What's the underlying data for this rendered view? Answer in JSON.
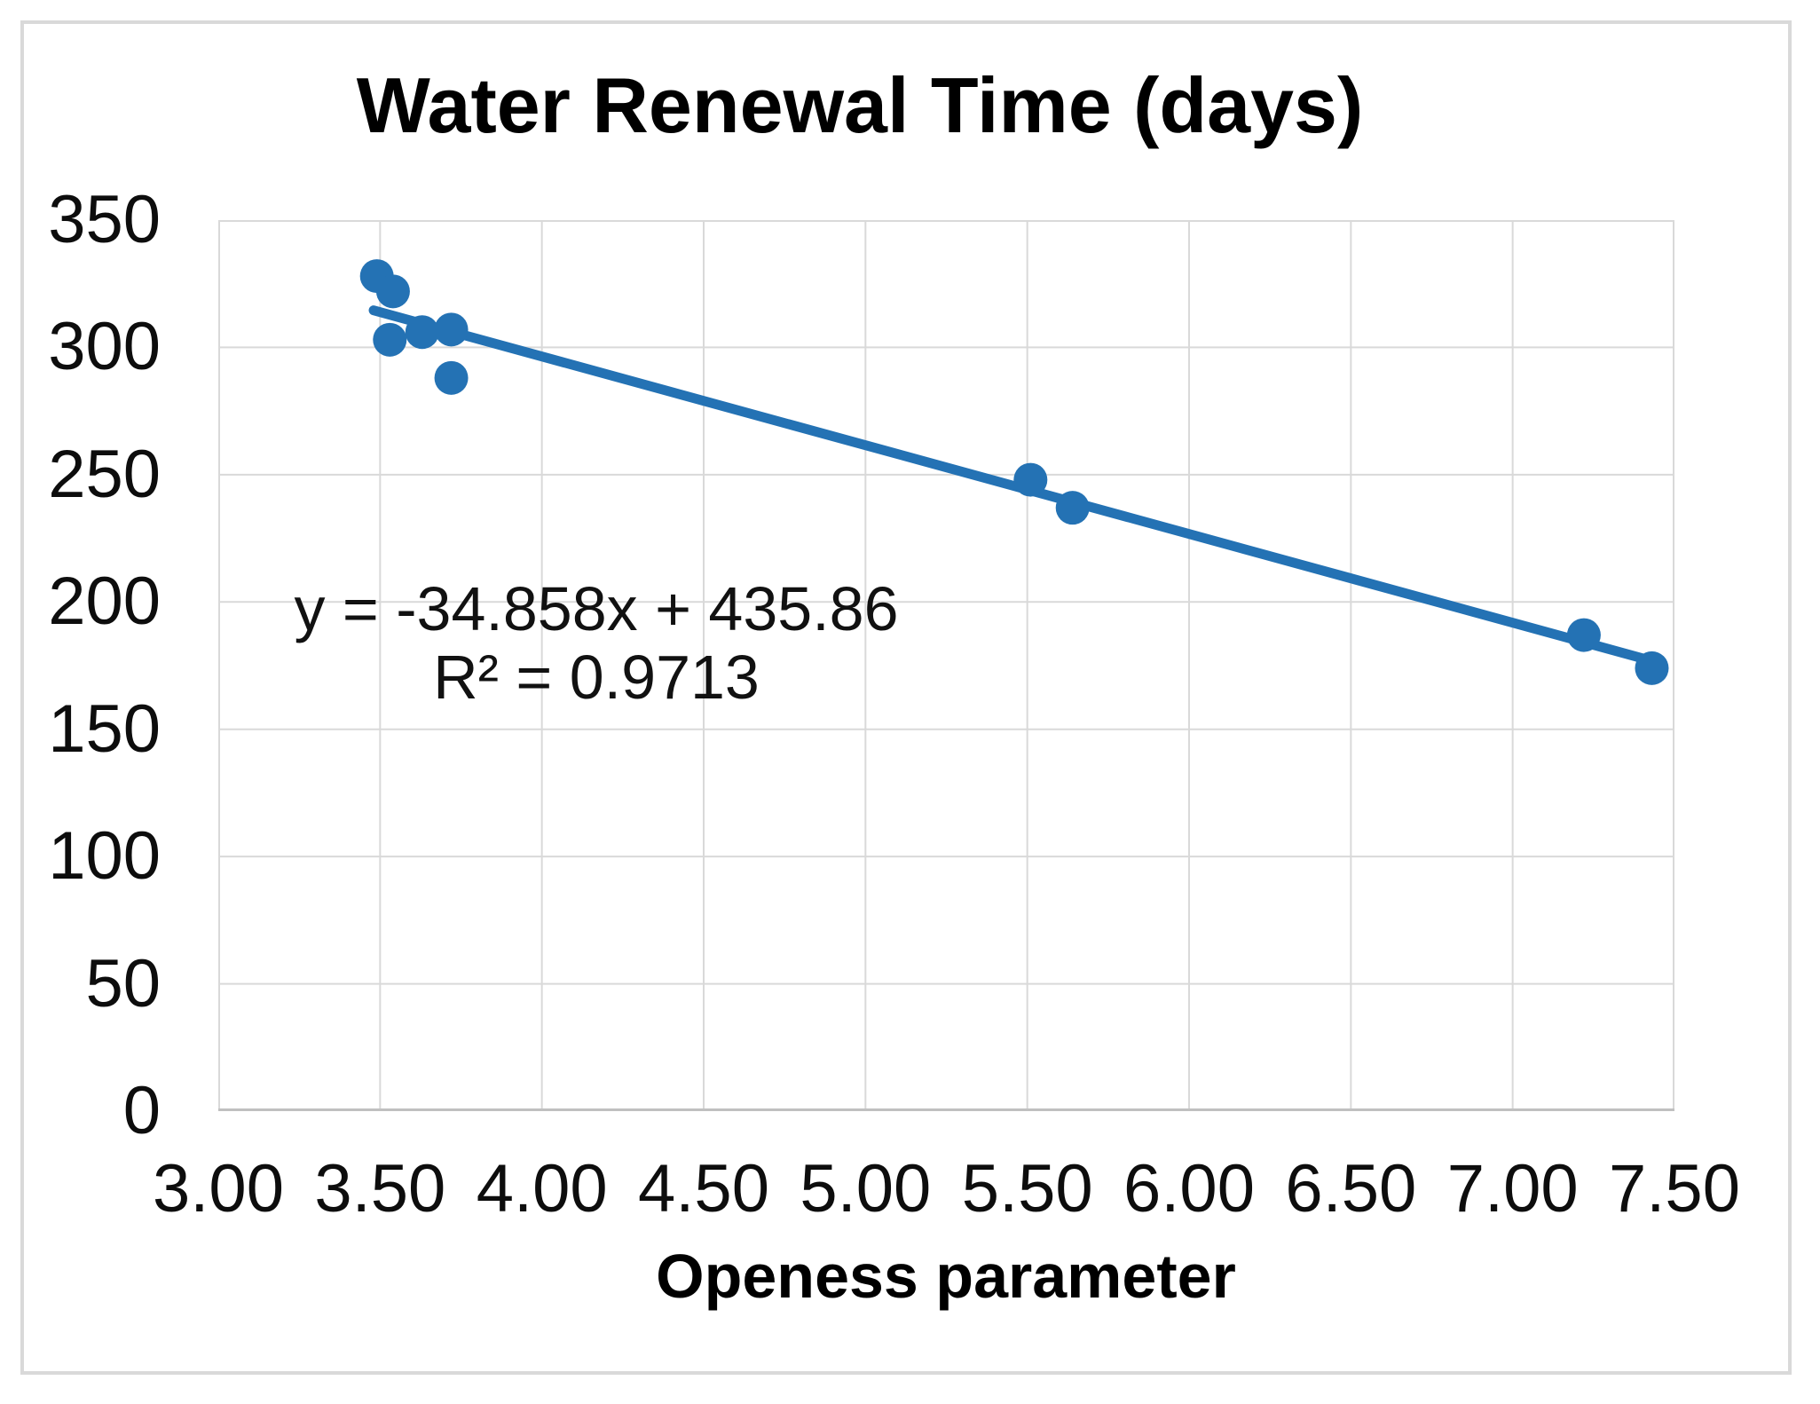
{
  "chart_data": {
    "type": "scatter",
    "title": "Water Renewal Time (days)",
    "xlabel": "Openess parameter",
    "ylabel": "",
    "xlim": [
      3.0,
      7.5
    ],
    "ylim": [
      0,
      350
    ],
    "grid": true,
    "legend_position": "none",
    "x_ticks": [
      {
        "value": 3.0,
        "label": "3.00"
      },
      {
        "value": 3.5,
        "label": "3.50"
      },
      {
        "value": 4.0,
        "label": "4.00"
      },
      {
        "value": 4.5,
        "label": "4.50"
      },
      {
        "value": 5.0,
        "label": "5.00"
      },
      {
        "value": 5.5,
        "label": "5.50"
      },
      {
        "value": 6.0,
        "label": "6.00"
      },
      {
        "value": 6.5,
        "label": "6.50"
      },
      {
        "value": 7.0,
        "label": "7.00"
      },
      {
        "value": 7.5,
        "label": "7.50"
      }
    ],
    "y_ticks": [
      {
        "value": 350,
        "label": "350"
      },
      {
        "value": 300,
        "label": "300"
      },
      {
        "value": 250,
        "label": "250"
      },
      {
        "value": 200,
        "label": "200"
      },
      {
        "value": 150,
        "label": "150"
      },
      {
        "value": 100,
        "label": "100"
      },
      {
        "value": 50,
        "label": "50"
      },
      {
        "value": 0,
        "label": "0"
      }
    ],
    "points": [
      {
        "x": 3.49,
        "y": 328
      },
      {
        "x": 3.54,
        "y": 322
      },
      {
        "x": 3.53,
        "y": 303
      },
      {
        "x": 3.63,
        "y": 306
      },
      {
        "x": 3.72,
        "y": 307
      },
      {
        "x": 3.72,
        "y": 288
      },
      {
        "x": 5.51,
        "y": 248
      },
      {
        "x": 5.64,
        "y": 237
      },
      {
        "x": 7.22,
        "y": 187
      },
      {
        "x": 7.43,
        "y": 174
      }
    ],
    "trendline": {
      "slope": -34.858,
      "intercept": 435.86,
      "x_start": 3.48,
      "x_end": 7.44,
      "equation_label": "y = -34.858x + 435.86",
      "r2_label": "R² = 0.9713"
    },
    "colors": {
      "series": "#2472b4",
      "gridline": "#d9d9d9",
      "axis_line": "#c0c0c0",
      "frame_border": "#d9d9d9",
      "text": "#000000"
    }
  }
}
